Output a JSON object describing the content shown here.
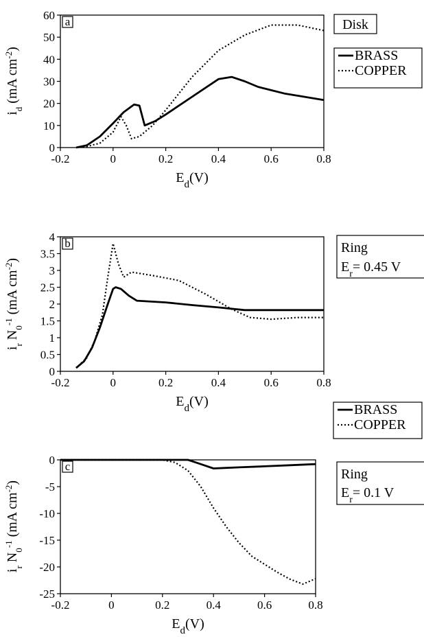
{
  "legend_series": [
    "BRASS",
    "COPPER"
  ],
  "chart_data": [
    {
      "type": "line",
      "panel_label": "a",
      "title": "Disk",
      "xlabel": "Ed(V)",
      "ylabel": "id (mA cm-2)",
      "xlim": [
        -0.2,
        0.8
      ],
      "ylim": [
        0,
        60
      ],
      "xticks": [
        "-0.2",
        "0",
        "0.2",
        "0.4",
        "0.6",
        "0.8"
      ],
      "yticks": [
        "0",
        "10",
        "20",
        "30",
        "40",
        "50",
        "60"
      ],
      "legend": "right",
      "series": [
        {
          "name": "BRASS",
          "style": "solid",
          "x": [
            -0.14,
            -0.1,
            -0.05,
            0.0,
            0.04,
            0.08,
            0.1,
            0.12,
            0.16,
            0.2,
            0.3,
            0.4,
            0.45,
            0.5,
            0.55,
            0.6,
            0.65,
            0.7,
            0.8
          ],
          "y": [
            0,
            1,
            5,
            11,
            16,
            19.5,
            19,
            10,
            12,
            15,
            23,
            31,
            32,
            30,
            27.5,
            26,
            24.5,
            23.5,
            21.5
          ]
        },
        {
          "name": "COPPER",
          "style": "dotted",
          "x": [
            -0.14,
            -0.1,
            -0.05,
            0.0,
            0.03,
            0.05,
            0.07,
            0.1,
            0.15,
            0.2,
            0.3,
            0.4,
            0.5,
            0.6,
            0.7,
            0.8
          ],
          "y": [
            0,
            0.5,
            2,
            7,
            14,
            10,
            4,
            5,
            10,
            17,
            32,
            44,
            51,
            55.5,
            55.5,
            53
          ]
        }
      ]
    },
    {
      "type": "line",
      "panel_label": "b",
      "title": "Ring",
      "subtitle": "Er = 0.45 V",
      "xlabel": "Ed(V)",
      "ylabel": "ir N0-1 (mA cm-2)",
      "xlim": [
        -0.2,
        0.8
      ],
      "ylim": [
        0,
        4
      ],
      "xticks": [
        "-0.2",
        "0",
        "0.2",
        "0.4",
        "0.6",
        "0.8"
      ],
      "yticks": [
        "0",
        "0.5",
        "1",
        "1.5",
        "2",
        "2.5",
        "3",
        "3.5",
        "4"
      ],
      "legend": "bottom-right",
      "series": [
        {
          "name": "BRASS",
          "style": "solid",
          "x": [
            -0.14,
            -0.11,
            -0.08,
            -0.05,
            -0.02,
            0.0,
            0.01,
            0.03,
            0.06,
            0.09,
            0.2,
            0.3,
            0.4,
            0.5,
            0.6,
            0.7,
            0.8
          ],
          "y": [
            0.1,
            0.3,
            0.7,
            1.3,
            2.0,
            2.45,
            2.5,
            2.45,
            2.25,
            2.1,
            2.05,
            1.97,
            1.9,
            1.82,
            1.82,
            1.82,
            1.82
          ]
        },
        {
          "name": "COPPER",
          "style": "dotted",
          "x": [
            -0.14,
            -0.1,
            -0.07,
            -0.04,
            -0.02,
            0.0,
            0.02,
            0.04,
            0.07,
            0.15,
            0.25,
            0.35,
            0.45,
            0.52,
            0.6,
            0.7,
            0.8
          ],
          "y": [
            0.1,
            0.4,
            0.9,
            1.7,
            2.8,
            3.8,
            3.2,
            2.8,
            2.95,
            2.85,
            2.7,
            2.3,
            1.85,
            1.6,
            1.55,
            1.6,
            1.6
          ]
        }
      ]
    },
    {
      "type": "line",
      "panel_label": "c",
      "title": "Ring",
      "subtitle": "Er = 0.1 V",
      "xlabel": "Ed(V)",
      "ylabel": "ir N0-1 (mA cm-2)",
      "xlim": [
        -0.2,
        0.8
      ],
      "ylim": [
        -25,
        0
      ],
      "xticks": [
        "-0.2",
        "0",
        "0.2",
        "0.4",
        "0.6",
        "0.8"
      ],
      "yticks": [
        "0",
        "-5",
        "-10",
        "-15",
        "-20",
        "-25"
      ],
      "series": [
        {
          "name": "BRASS",
          "style": "solid",
          "x": [
            -0.2,
            0.0,
            0.2,
            0.3,
            0.35,
            0.4,
            0.45,
            0.5,
            0.6,
            0.7,
            0.8
          ],
          "y": [
            0,
            0,
            0,
            0,
            -0.8,
            -1.6,
            -1.5,
            -1.4,
            -1.2,
            -1.0,
            -0.8
          ]
        },
        {
          "name": "COPPER",
          "style": "dotted",
          "x": [
            -0.2,
            0.0,
            0.2,
            0.25,
            0.3,
            0.35,
            0.4,
            0.45,
            0.5,
            0.55,
            0.6,
            0.65,
            0.7,
            0.75,
            0.8
          ],
          "y": [
            0,
            0,
            0,
            -0.5,
            -2,
            -5,
            -9,
            -12.5,
            -15.5,
            -18,
            -19.5,
            -21,
            -22.3,
            -23.2,
            -22.2
          ]
        }
      ]
    }
  ]
}
